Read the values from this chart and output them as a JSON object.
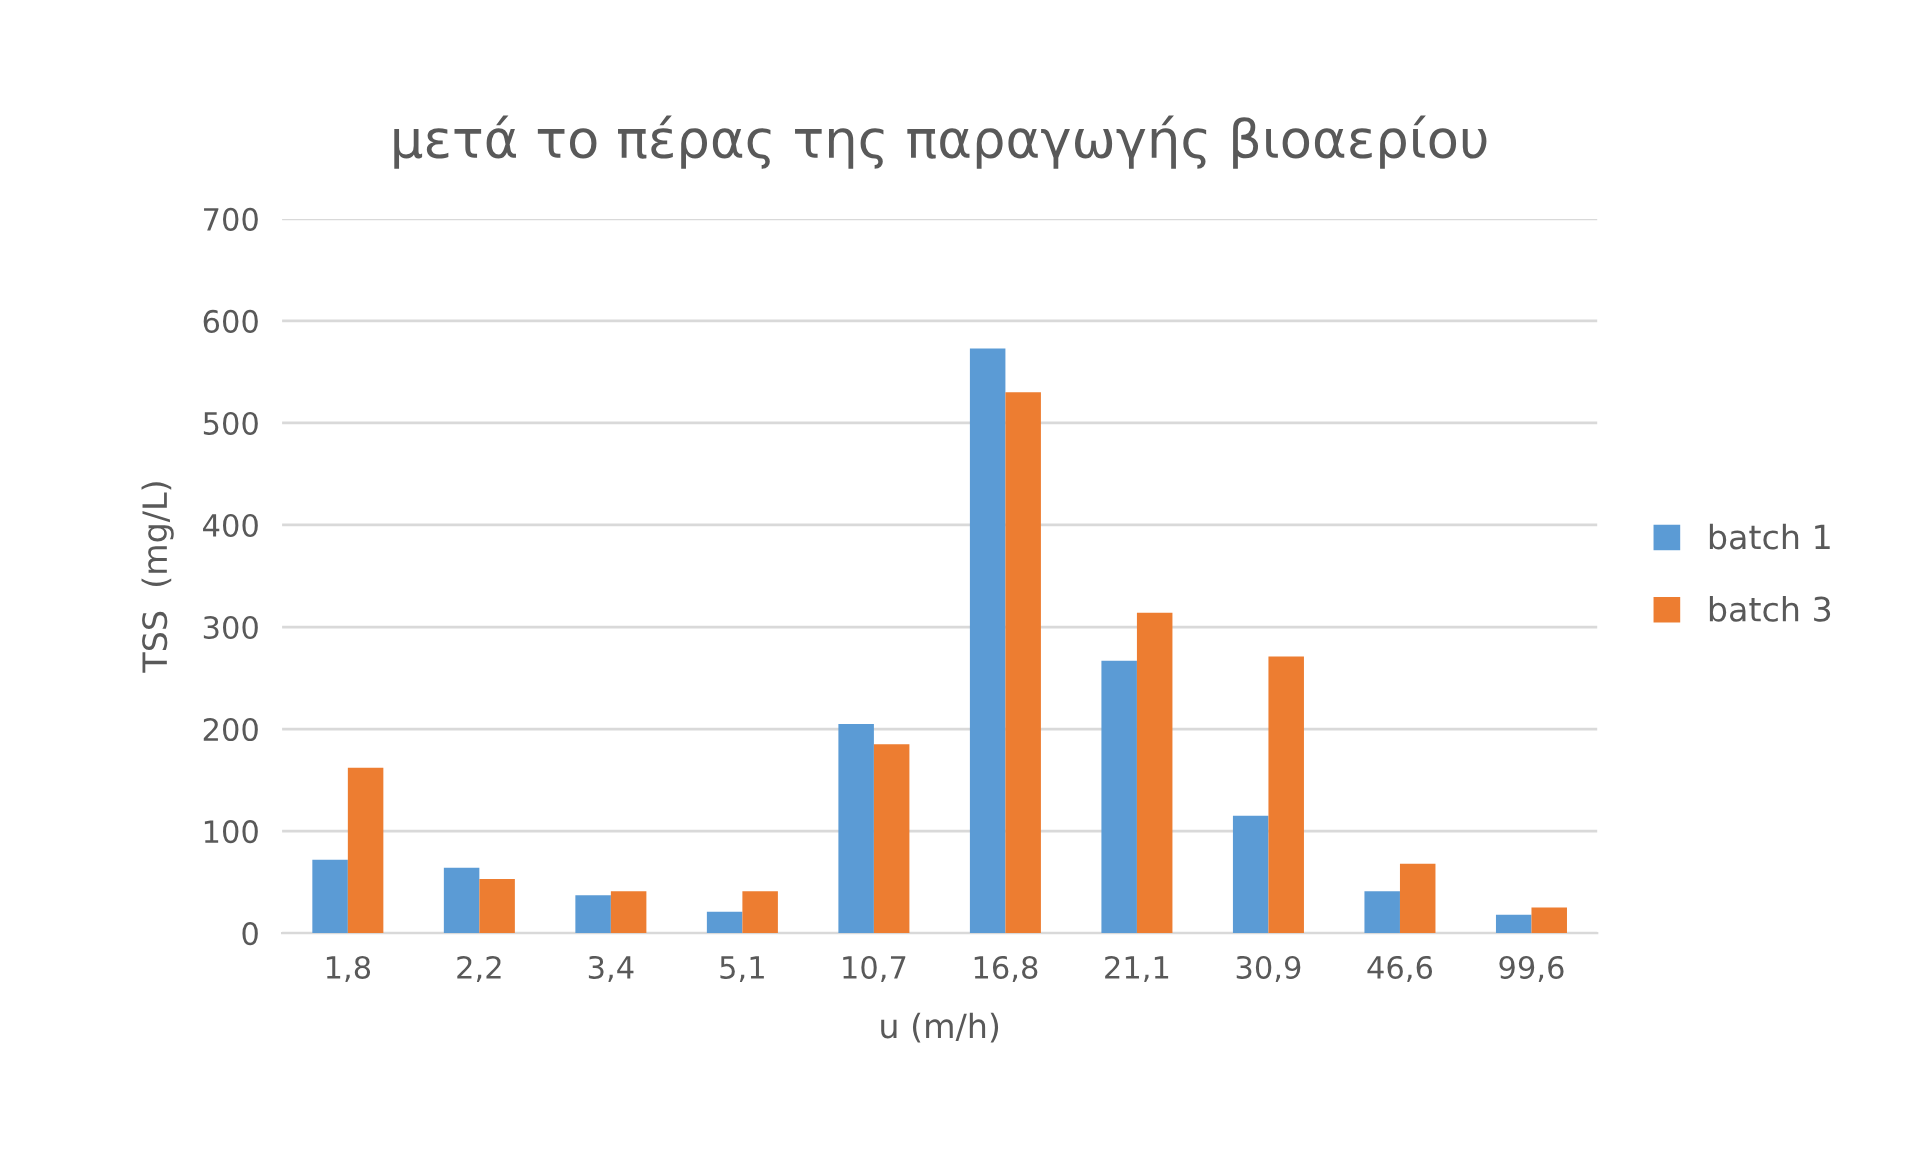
{
  "chart_data": {
    "type": "bar",
    "title": "μετά το πέρας της παραγωγής βιοαερίου",
    "xlabel": "u (m/h)",
    "ylabel": "TSS  (mg/L)",
    "categories": [
      "1,8",
      "2,2",
      "3,4",
      "5,1",
      "10,7",
      "16,8",
      "21,1",
      "30,9",
      "46,6",
      "99,6"
    ],
    "series": [
      {
        "name": "batch 1",
        "color": "#5b9bd5",
        "values": [
          72,
          64,
          37,
          21,
          205,
          573,
          267,
          115,
          41,
          18
        ]
      },
      {
        "name": "batch 3",
        "color": "#ed7d31",
        "values": [
          162,
          53,
          41,
          41,
          185,
          530,
          314,
          271,
          68,
          25
        ]
      }
    ],
    "ylim": [
      0,
      700
    ],
    "yticks": [
      0,
      100,
      200,
      300,
      400,
      500,
      600,
      700
    ],
    "grid": "y",
    "legend": "right"
  }
}
